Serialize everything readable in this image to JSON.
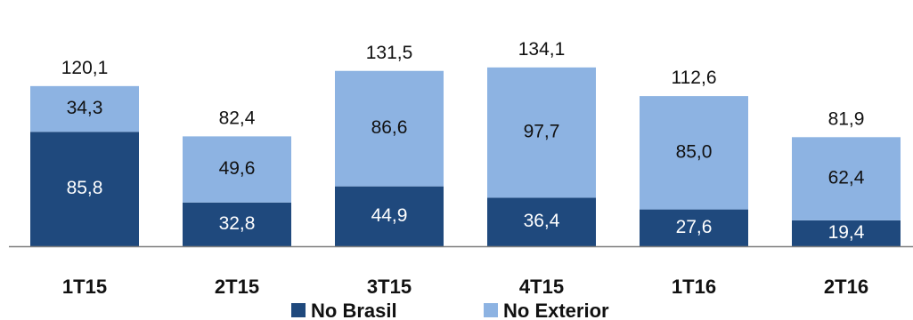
{
  "chart_data": {
    "type": "bar",
    "stacked": true,
    "categories": [
      "1T15",
      "2T15",
      "3T15",
      "4T15",
      "1T16",
      "2T16"
    ],
    "series": [
      {
        "name": "No Brasil",
        "values": [
          85.8,
          32.8,
          44.9,
          36.4,
          27.6,
          19.4
        ],
        "color": "#1f497d"
      },
      {
        "name": "No Exterior",
        "values": [
          34.3,
          49.6,
          86.6,
          97.7,
          85.0,
          62.4
        ],
        "color": "#8db3e2"
      }
    ],
    "series_labels": [
      [
        "85,8",
        "32,8",
        "44,9",
        "36,4",
        "27,6",
        "19,4"
      ],
      [
        "34,3",
        "49,6",
        "86,6",
        "97,7",
        "85,0",
        "62,4"
      ]
    ],
    "totals": [
      120.1,
      82.4,
      131.5,
      134.1,
      112.6,
      81.9
    ],
    "total_labels": [
      "120,1",
      "82,4",
      "131,5",
      "134,1",
      "112,6",
      "81,9"
    ],
    "title": "",
    "xlabel": "",
    "ylabel": "",
    "ylim": [
      0,
      140
    ],
    "grid": false,
    "legend": {
      "position": "bottom",
      "entries": [
        "No Brasil",
        "No Exterior"
      ]
    },
    "colors": {
      "inner_label_color": "#ffffff",
      "outer_label_color": "#111111",
      "axis_color": "#7f7f7f"
    }
  }
}
